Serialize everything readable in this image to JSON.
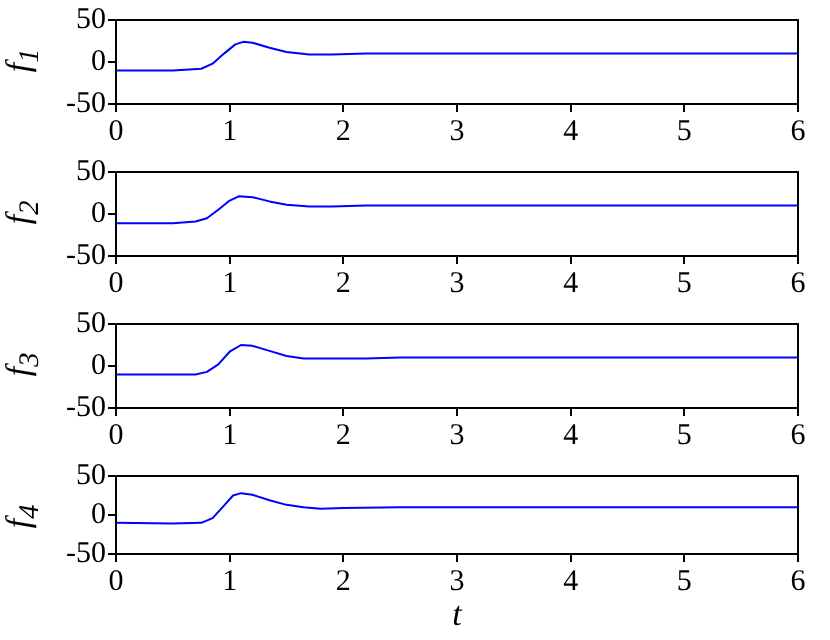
{
  "chart_data": [
    {
      "type": "line",
      "ylabel": "f$_{1}$",
      "xlim": [
        0,
        6
      ],
      "xticks": [
        0,
        1,
        2,
        3,
        4,
        5,
        6
      ],
      "ylim": [
        -50,
        50
      ],
      "yticks": [
        -50,
        0,
        50
      ],
      "series": [
        {
          "color": "#0000ff",
          "x": [
            0,
            0.5,
            0.75,
            0.85,
            0.95,
            1.05,
            1.12,
            1.2,
            1.35,
            1.5,
            1.7,
            1.9,
            2.2,
            2.5,
            3,
            4,
            5,
            6
          ],
          "values": [
            -10,
            -10,
            -8,
            -2,
            10,
            21,
            24,
            23,
            17,
            12,
            9,
            9,
            10,
            10,
            10,
            10,
            10,
            10
          ]
        }
      ]
    },
    {
      "type": "line",
      "ylabel": "f$_{2}$",
      "xlim": [
        0,
        6
      ],
      "xticks": [
        0,
        1,
        2,
        3,
        4,
        5,
        6
      ],
      "ylim": [
        -50,
        50
      ],
      "yticks": [
        -50,
        0,
        50
      ],
      "series": [
        {
          "color": "#0000ff",
          "x": [
            0,
            0.5,
            0.7,
            0.8,
            0.9,
            1.0,
            1.08,
            1.2,
            1.35,
            1.5,
            1.7,
            1.9,
            2.2,
            2.5,
            3,
            4,
            5,
            6
          ],
          "values": [
            -11,
            -11,
            -9,
            -5,
            5,
            16,
            21,
            20,
            15,
            11,
            9,
            9,
            10,
            10,
            10,
            10,
            10,
            10
          ]
        }
      ]
    },
    {
      "type": "line",
      "ylabel": "f$_{3}$",
      "xlim": [
        0,
        6
      ],
      "xticks": [
        0,
        1,
        2,
        3,
        4,
        5,
        6
      ],
      "ylim": [
        -50,
        50
      ],
      "yticks": [
        -50,
        0,
        50
      ],
      "series": [
        {
          "color": "#0000ff",
          "x": [
            0,
            0.5,
            0.7,
            0.8,
            0.9,
            1.0,
            1.1,
            1.2,
            1.35,
            1.5,
            1.65,
            1.9,
            2.2,
            2.5,
            3,
            4,
            5,
            6
          ],
          "values": [
            -10,
            -10,
            -10,
            -7,
            2,
            17,
            25,
            24,
            18,
            12,
            9,
            9,
            9,
            10,
            10,
            10,
            10,
            10
          ]
        }
      ]
    },
    {
      "type": "line",
      "ylabel": "f$_{4}$",
      "xlabel": "t",
      "xlim": [
        0,
        6
      ],
      "xticks": [
        0,
        1,
        2,
        3,
        4,
        5,
        6
      ],
      "ylim": [
        -50,
        50
      ],
      "yticks": [
        -50,
        0,
        50
      ],
      "series": [
        {
          "color": "#0000ff",
          "x": [
            0,
            0.5,
            0.75,
            0.85,
            0.95,
            1.03,
            1.1,
            1.2,
            1.35,
            1.5,
            1.65,
            1.8,
            2.0,
            2.5,
            3,
            4,
            5,
            6
          ],
          "values": [
            -10,
            -11,
            -10,
            -4,
            12,
            25,
            28,
            26,
            19,
            13,
            10,
            8,
            9,
            10,
            10,
            10,
            10,
            10
          ]
        }
      ]
    }
  ]
}
